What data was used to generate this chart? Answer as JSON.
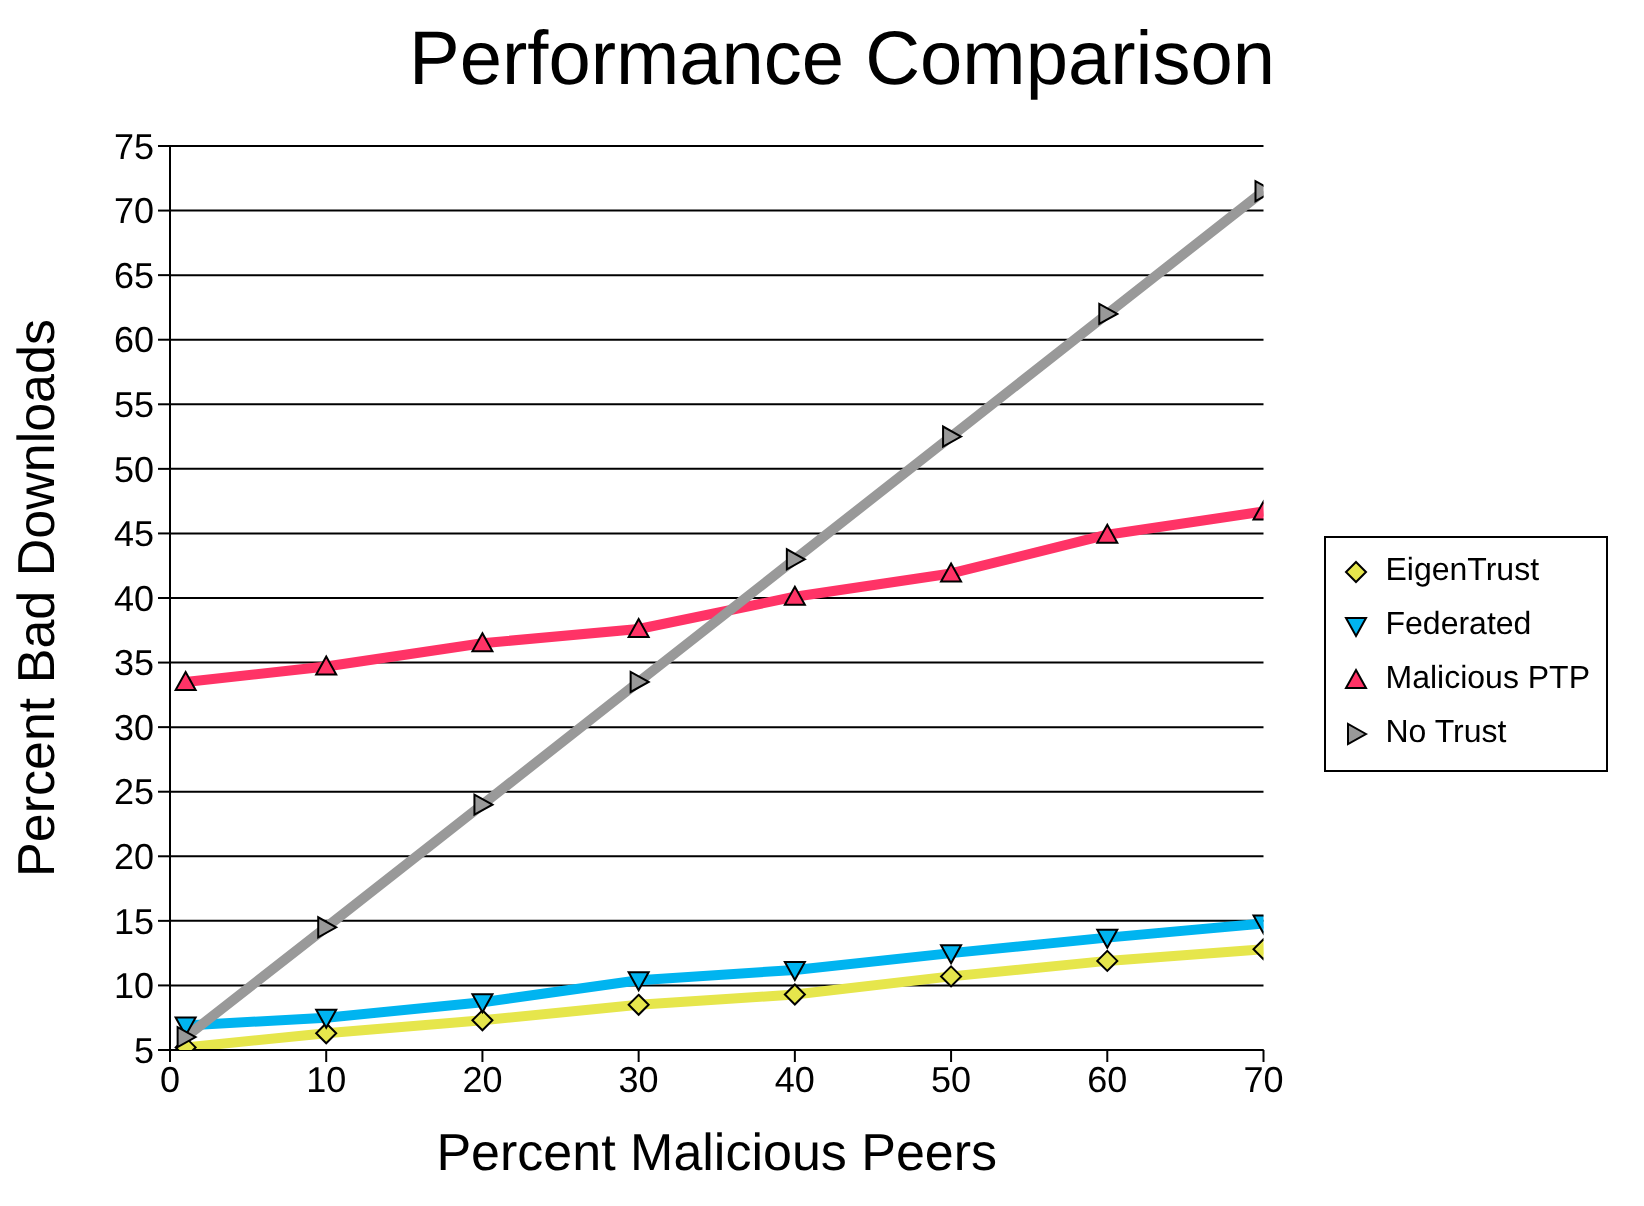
{
  "chart_data": {
    "type": "line",
    "title": "Performance Comparison",
    "xlabel": "Percent Malicious Peers",
    "ylabel": "Percent Bad Downloads",
    "x": [
      1,
      10,
      20,
      30,
      40,
      50,
      60,
      70
    ],
    "xlim": [
      0,
      70
    ],
    "xticks": [
      0,
      10,
      20,
      30,
      40,
      50,
      60,
      70
    ],
    "ylim": [
      5,
      75
    ],
    "yticks": [
      5,
      10,
      15,
      20,
      25,
      30,
      35,
      40,
      45,
      50,
      55,
      60,
      65,
      70,
      75
    ],
    "grid": "y",
    "legend": "right",
    "line_style": "solid",
    "series": [
      {
        "name": "EigenTrust",
        "color": "#e6e64c",
        "marker": "diamond",
        "values": [
          5.2,
          6.3,
          7.3,
          8.5,
          9.3,
          10.7,
          11.9,
          12.8
        ]
      },
      {
        "name": "Federated",
        "color": "#00b4f0",
        "marker": "triangle-down",
        "values": [
          6.9,
          7.5,
          8.7,
          10.4,
          11.2,
          12.5,
          13.7,
          14.8
        ]
      },
      {
        "name": "Malicious PTP",
        "color": "#ff3366",
        "marker": "triangle",
        "values": [
          33.5,
          34.7,
          36.5,
          37.6,
          40.1,
          41.9,
          44.9,
          46.7
        ]
      },
      {
        "name": "No Trust",
        "color": "#999999",
        "marker": "triangle-right",
        "values": [
          6,
          14.5,
          24,
          33.5,
          43,
          52.5,
          62,
          71.5
        ]
      }
    ]
  }
}
